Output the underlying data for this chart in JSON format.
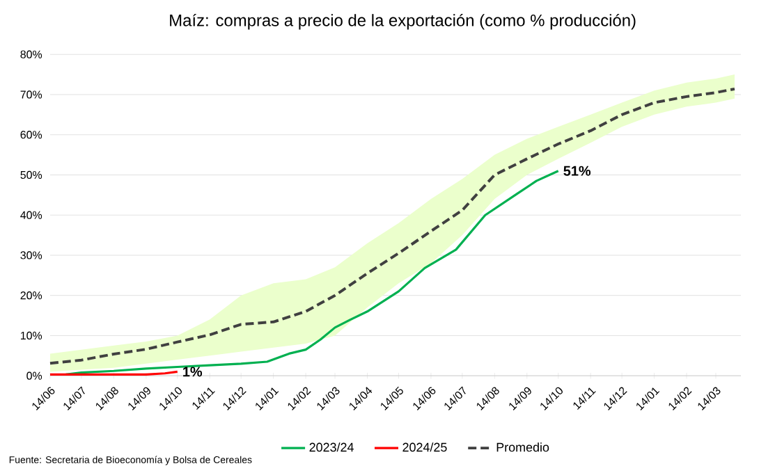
{
  "chart_data": {
    "type": "line",
    "title": "Maíz: compras a precio de la exportación (como % producción)",
    "xlim": [
      "2024-06-14",
      "2026-04-07"
    ],
    "xticks": [
      {
        "value": "2024-06-14",
        "label": "14/06"
      },
      {
        "value": "2024-07-14",
        "label": "14/07"
      },
      {
        "value": "2024-08-14",
        "label": "14/08"
      },
      {
        "value": "2024-09-14",
        "label": "14/09"
      },
      {
        "value": "2024-10-14",
        "label": "14/10"
      },
      {
        "value": "2024-11-14",
        "label": "14/11"
      },
      {
        "value": "2024-12-14",
        "label": "14/12"
      },
      {
        "value": "2025-01-14",
        "label": "14/01"
      },
      {
        "value": "2025-02-14",
        "label": "14/02"
      },
      {
        "value": "2025-03-14",
        "label": "14/03"
      },
      {
        "value": "2025-04-14",
        "label": "14/04"
      },
      {
        "value": "2025-05-14",
        "label": "14/05"
      },
      {
        "value": "2025-06-14",
        "label": "14/06"
      },
      {
        "value": "2025-07-14",
        "label": "14/07"
      },
      {
        "value": "2025-08-14",
        "label": "14/08"
      },
      {
        "value": "2025-09-14",
        "label": "14/09"
      },
      {
        "value": "2025-10-14",
        "label": "14/10"
      },
      {
        "value": "2025-11-14",
        "label": "14/11"
      },
      {
        "value": "2025-12-14",
        "label": "14/12"
      },
      {
        "value": "2026-01-14",
        "label": "14/01"
      },
      {
        "value": "2026-02-14",
        "label": "14/02"
      },
      {
        "value": "2026-03-14",
        "label": "14/03"
      }
    ],
    "ylim": [
      0,
      80
    ],
    "yticks": [
      {
        "value": 0,
        "label": "0%"
      },
      {
        "value": 10,
        "label": "10%"
      },
      {
        "value": 20,
        "label": "20%"
      },
      {
        "value": 30,
        "label": "30%"
      },
      {
        "value": 40,
        "label": "40%"
      },
      {
        "value": 50,
        "label": "50%"
      },
      {
        "value": 60,
        "label": "60%"
      },
      {
        "value": 70,
        "label": "70%"
      },
      {
        "value": 80,
        "label": "80%"
      }
    ],
    "grid": "y",
    "legend": "bottom",
    "marker": "none",
    "series": [
      {
        "name": "2023/24",
        "color": "#00b050",
        "line_style": "solid",
        "x": [
          "2024-06-29",
          "2024-07-14",
          "2024-08-14",
          "2024-09-14",
          "2024-10-14",
          "2024-11-14",
          "2024-12-14",
          "2025-01-08",
          "2025-01-29",
          "2025-02-14",
          "2025-02-28",
          "2025-03-14",
          "2025-03-29",
          "2025-04-14",
          "2025-04-29",
          "2025-05-14",
          "2025-06-08",
          "2025-07-08",
          "2025-08-05",
          "2025-09-04",
          "2025-09-23",
          "2025-10-14"
        ],
        "values": [
          0.3,
          0.8,
          1.2,
          1.8,
          2.2,
          2.6,
          3,
          3.5,
          5.5,
          6.5,
          9,
          12,
          14,
          16,
          18.5,
          21,
          26.8,
          31.4,
          40,
          45.2,
          48.5,
          51
        ],
        "value_labels": [
          null,
          null,
          null,
          null,
          null,
          null,
          null,
          null,
          null,
          null,
          null,
          null,
          null,
          null,
          null,
          null,
          null,
          null,
          null,
          null,
          null,
          "51%"
        ]
      },
      {
        "name": "2024/25",
        "color": "#ff0000",
        "line_style": "solid",
        "x": [
          "2024-06-14",
          "2024-07-14",
          "2024-08-14",
          "2024-09-14",
          "2024-10-02",
          "2024-10-14"
        ],
        "values": [
          0.3,
          0.3,
          0.3,
          0.3,
          0.6,
          1
        ],
        "value_labels": [
          null,
          null,
          null,
          null,
          null,
          "1%"
        ]
      },
      {
        "name": "Promedio",
        "color": "#404040",
        "line_style": "dashed",
        "x": [
          "2024-06-14",
          "2024-07-14",
          "2024-08-14",
          "2024-09-14",
          "2024-10-14",
          "2024-11-14",
          "2024-12-14",
          "2025-01-14",
          "2025-02-14",
          "2025-03-14",
          "2025-04-14",
          "2025-05-14",
          "2025-06-14",
          "2025-07-14",
          "2025-08-14",
          "2025-09-14",
          "2025-10-14",
          "2025-11-14",
          "2025-12-14",
          "2026-01-14",
          "2026-02-14",
          "2026-03-14",
          "2026-04-01"
        ],
        "values": [
          3.1,
          3.9,
          5.4,
          6.6,
          8.4,
          10.2,
          12.8,
          13.4,
          16,
          20,
          25.5,
          30.5,
          36,
          41.2,
          50,
          54,
          57.7,
          61,
          65,
          68,
          69.5,
          70.5,
          71.4
        ],
        "lower": [
          1,
          1.5,
          2,
          3,
          4,
          5,
          6,
          7,
          8,
          10,
          17,
          23,
          28,
          35,
          44,
          50,
          54,
          58,
          62,
          65,
          67,
          68,
          69
        ],
        "upper": [
          5.5,
          6.5,
          7.5,
          8.5,
          10,
          14,
          20,
          23,
          24,
          27,
          33,
          38,
          44,
          49,
          55,
          59,
          62,
          65,
          68,
          71,
          73,
          74,
          75
        ]
      }
    ],
    "annotations": [
      "Fuente: Secretaria de Bioeconomía y Bolsa de Cereales"
    ]
  }
}
